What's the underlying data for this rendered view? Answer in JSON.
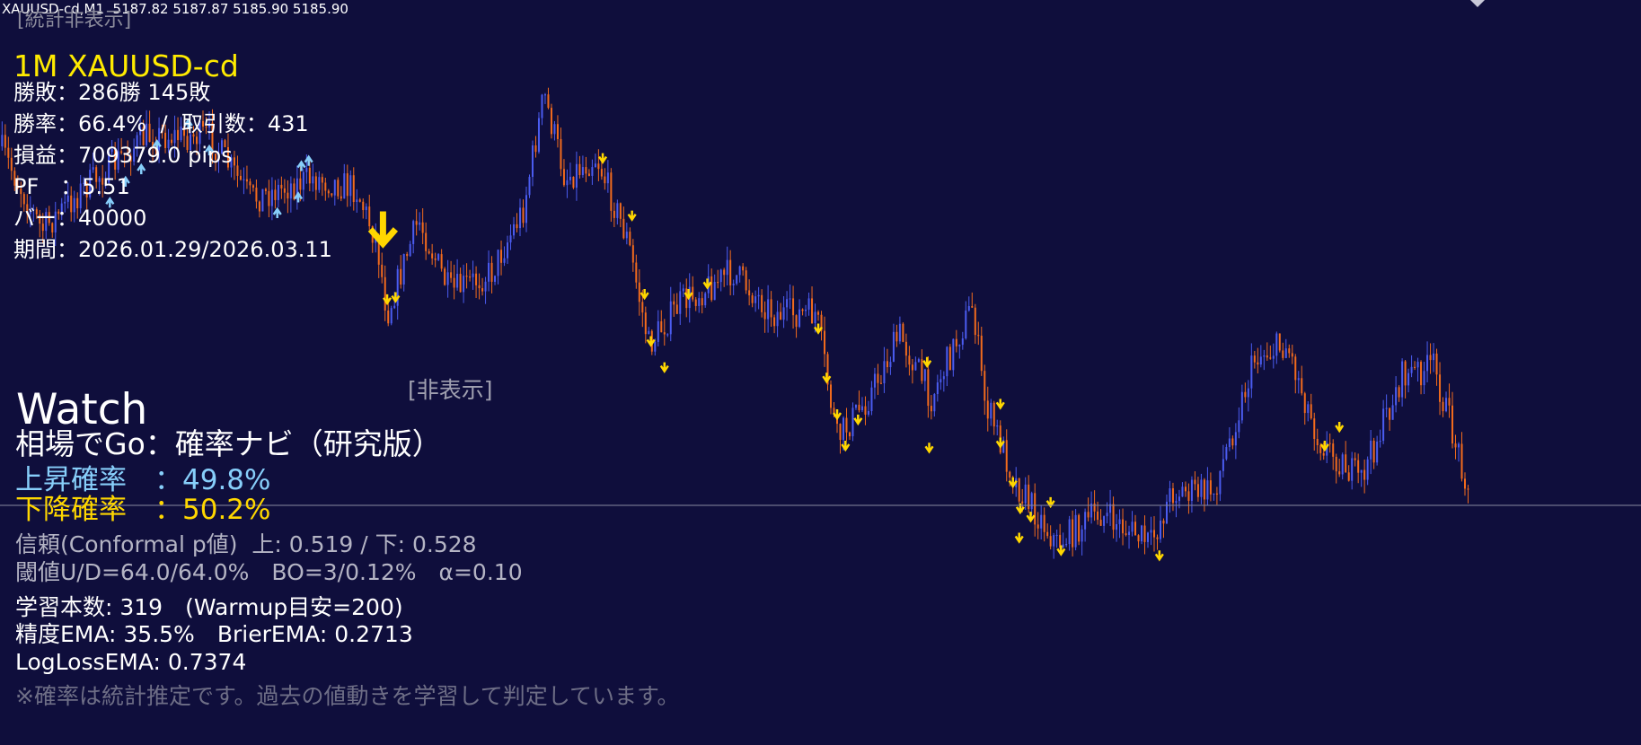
{
  "header": {
    "symbol_line": "XAUUSD-cd,M1  5187.82 5187.87 5185.90 5185.90",
    "stats_toggle": "[統計非表示]"
  },
  "stats": {
    "title": "1M XAUUSD-cd",
    "lines": [
      "勝敗：286勝 145敗",
      "勝率：66.4%  /  取引数：431",
      "損益：709379.0 pips",
      "PF　：5.51",
      "バー：40000",
      "期間：2026.01.29/2026.03.11"
    ]
  },
  "panel": {
    "hide_toggle": "[非表示]",
    "mode": "Watch",
    "name": "相場でGo：確率ナビ（研究版）",
    "up_prob": "上昇確率　：49.8%",
    "down_prob": "下降確率　：50.2%",
    "confidence": "信頼(Conformal p値)  上: 0.519 / 下: 0.528",
    "threshold": "閾値U/D=64.0/64.0%　BO=3/0.12%　α=0.10",
    "training": "学習本数: 319　(Warmup目安=200)",
    "accuracy": "精度EMA: 35.5%　BrierEMA: 0.2713",
    "logloss": "LogLossEMA: 0.7374",
    "note": "※確率は統計推定です。過去の値動きを学習して判定しています。"
  }
}
